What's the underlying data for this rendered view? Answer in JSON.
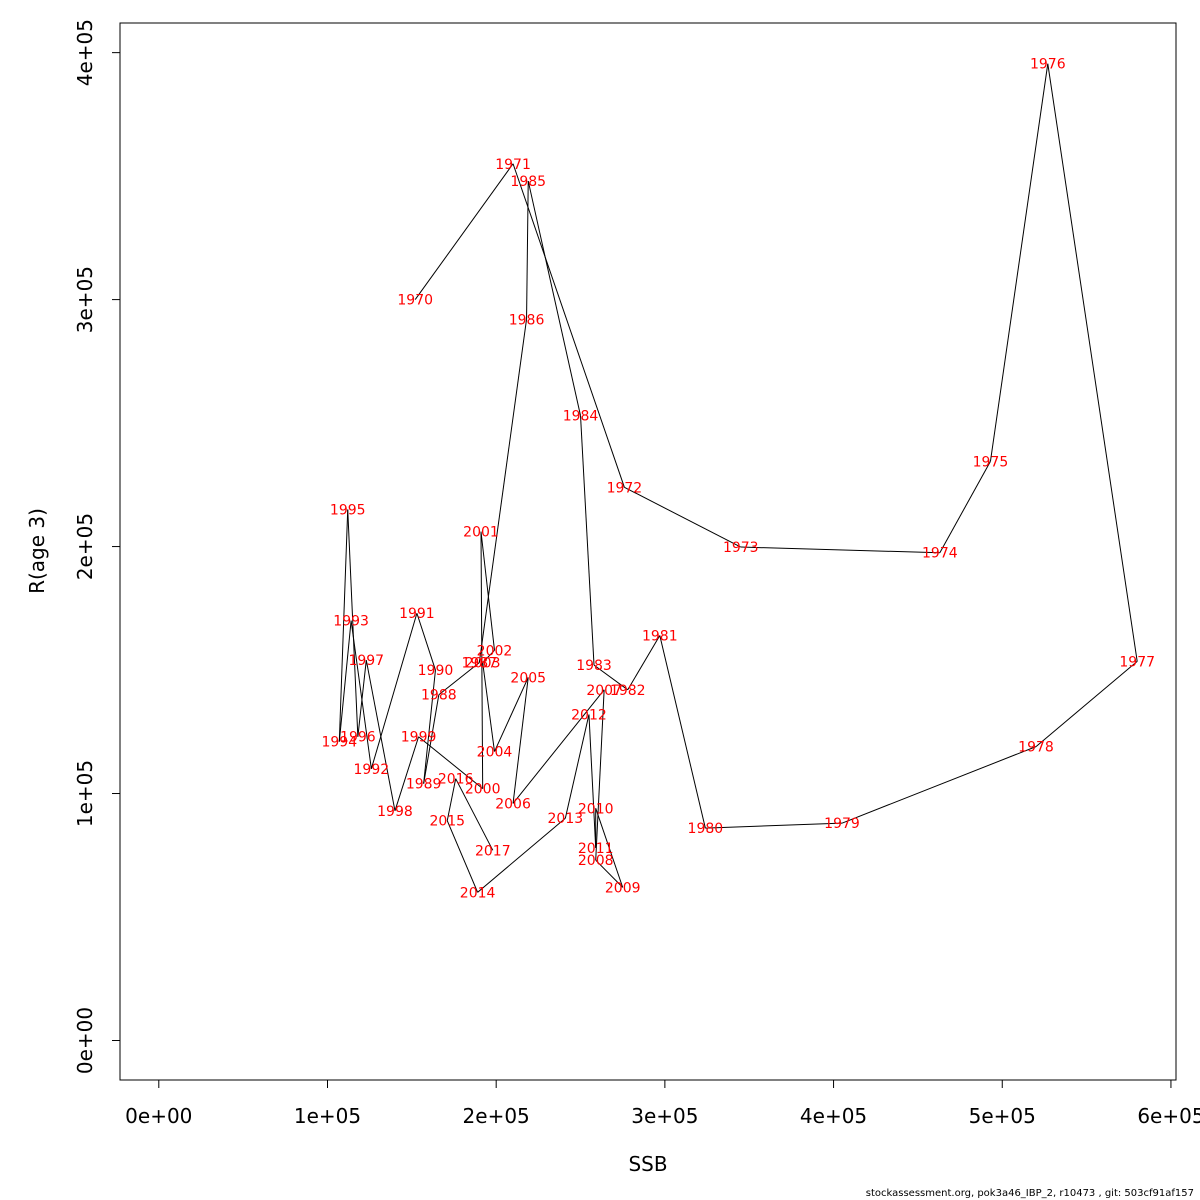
{
  "chart_data": {
    "type": "scatter",
    "connected": true,
    "xlabel": "SSB",
    "ylabel": "R(age 3)",
    "xlim": [
      -23000,
      603000
    ],
    "ylim": [
      -16000,
      412000
    ],
    "xticks": [
      0,
      100000,
      200000,
      300000,
      400000,
      500000,
      600000
    ],
    "xtick_labels": [
      "0e+00",
      "1e+05",
      "2e+05",
      "3e+05",
      "4e+05",
      "5e+05",
      "6e+05"
    ],
    "yticks": [
      0,
      100000,
      200000,
      300000,
      400000
    ],
    "ytick_labels": [
      "0e+00",
      "1e+05",
      "2e+05",
      "3e+05",
      "4e+05"
    ],
    "grid": false,
    "label_color": "#ff0000",
    "line_color": "#000000",
    "points": [
      {
        "year": "1970",
        "x": 152000,
        "y": 300000
      },
      {
        "year": "1971",
        "x": 210000,
        "y": 355000
      },
      {
        "year": "1972",
        "x": 276000,
        "y": 224000
      },
      {
        "year": "1973",
        "x": 345000,
        "y": 199800
      },
      {
        "year": "1974",
        "x": 463000,
        "y": 197500
      },
      {
        "year": "1975",
        "x": 493000,
        "y": 234500
      },
      {
        "year": "1976",
        "x": 527000,
        "y": 395500
      },
      {
        "year": "1977",
        "x": 580000,
        "y": 153500
      },
      {
        "year": "1978",
        "x": 520000,
        "y": 119000
      },
      {
        "year": "1979",
        "x": 405000,
        "y": 88000
      },
      {
        "year": "1980",
        "x": 324000,
        "y": 86000
      },
      {
        "year": "1981",
        "x": 297000,
        "y": 164000
      },
      {
        "year": "1982",
        "x": 278000,
        "y": 142000
      },
      {
        "year": "1983",
        "x": 258000,
        "y": 152000
      },
      {
        "year": "1984",
        "x": 250000,
        "y": 253000
      },
      {
        "year": "1985",
        "x": 219000,
        "y": 348000
      },
      {
        "year": "1986",
        "x": 218000,
        "y": 292000
      },
      {
        "year": "1987",
        "x": 190000,
        "y": 153000
      },
      {
        "year": "1988",
        "x": 166000,
        "y": 140000
      },
      {
        "year": "1989",
        "x": 157000,
        "y": 104000
      },
      {
        "year": "1990",
        "x": 164000,
        "y": 150000
      },
      {
        "year": "1991",
        "x": 153000,
        "y": 173000
      },
      {
        "year": "1992",
        "x": 126000,
        "y": 110000
      },
      {
        "year": "1993",
        "x": 114000,
        "y": 170000
      },
      {
        "year": "1994",
        "x": 107000,
        "y": 121000
      },
      {
        "year": "1995",
        "x": 112000,
        "y": 215000
      },
      {
        "year": "1996",
        "x": 118000,
        "y": 123000
      },
      {
        "year": "1997",
        "x": 123000,
        "y": 154000
      },
      {
        "year": "1998",
        "x": 140000,
        "y": 93000
      },
      {
        "year": "1999",
        "x": 154000,
        "y": 123000
      },
      {
        "year": "2000",
        "x": 192000,
        "y": 102000
      },
      {
        "year": "2001",
        "x": 191000,
        "y": 206000
      },
      {
        "year": "2002",
        "x": 199000,
        "y": 158000
      },
      {
        "year": "2003",
        "x": 192000,
        "y": 153000
      },
      {
        "year": "2004",
        "x": 199000,
        "y": 117000
      },
      {
        "year": "2005",
        "x": 219000,
        "y": 147000
      },
      {
        "year": "2006",
        "x": 210000,
        "y": 96000
      },
      {
        "year": "2007",
        "x": 264000,
        "y": 142000
      },
      {
        "year": "2008",
        "x": 259000,
        "y": 73000
      },
      {
        "year": "2009",
        "x": 275000,
        "y": 62000
      },
      {
        "year": "2010",
        "x": 259000,
        "y": 94000
      },
      {
        "year": "2011",
        "x": 259000,
        "y": 78000
      },
      {
        "year": "2012",
        "x": 255000,
        "y": 132000
      },
      {
        "year": "2013",
        "x": 241000,
        "y": 90000
      },
      {
        "year": "2014",
        "x": 189000,
        "y": 60000
      },
      {
        "year": "2015",
        "x": 171000,
        "y": 89000
      },
      {
        "year": "2016",
        "x": 176000,
        "y": 106000
      },
      {
        "year": "2017",
        "x": 198000,
        "y": 77000
      }
    ]
  },
  "footer": {
    "text": "stockassessment.org, pok3a46_IBP_2, r10473 , git: 503cf91af157"
  }
}
